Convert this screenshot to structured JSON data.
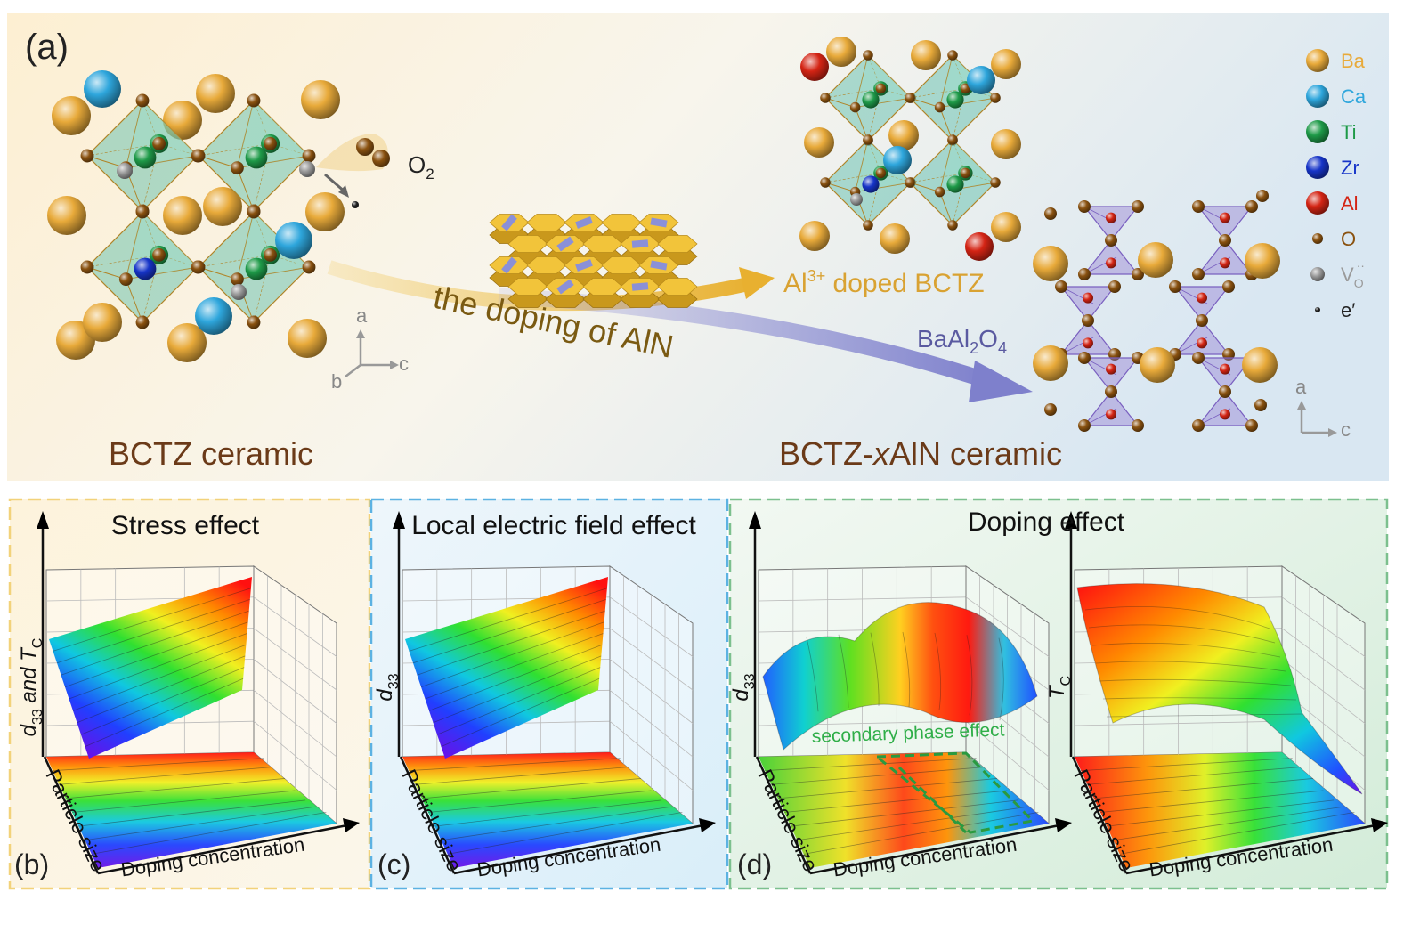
{
  "panel_a": {
    "label": "(a)",
    "o2": [
      "O",
      "2"
    ],
    "arrow_text": "the doping of AlN",
    "doped": [
      "Al",
      "3+",
      " doped BCTZ"
    ],
    "secondary": [
      "BaAl",
      "2",
      "O",
      "4"
    ],
    "left_caption": "BCTZ ceramic",
    "right_caption": [
      "BCTZ-",
      "x",
      "AlN ceramic"
    ],
    "axes_left": [
      "a",
      "b",
      "c"
    ],
    "axes_right": [
      "a",
      "c"
    ],
    "legend": [
      {
        "label": "Ba",
        "color": "#e8aa3a"
      },
      {
        "label": "Ca",
        "color": "#2ea6dc"
      },
      {
        "label": "Ti",
        "color": "#1e9a48"
      },
      {
        "label": "Zr",
        "color": "#1634c8"
      },
      {
        "label": "Al",
        "color": "#d42414"
      },
      {
        "label": "O",
        "color": "#8a5210"
      },
      {
        "label": "V",
        "sub": "O",
        "sup": "··",
        "color": "#9a9a9a"
      },
      {
        "label": "e′",
        "color": "#222222"
      }
    ]
  },
  "panels": [
    {
      "label": "(b)",
      "title": "Stress effect",
      "plots": [
        {
          "z_label": [
            "d",
            "33",
            " and T",
            "C"
          ],
          "y_label": "Particle size",
          "x_label": "Doping concentration"
        }
      ]
    },
    {
      "label": "(c)",
      "title": "Local electric field effect",
      "plots": [
        {
          "z_label": [
            "d",
            "33"
          ],
          "y_label": "Particle size",
          "x_label": "Doping concentration"
        }
      ]
    },
    {
      "label": "(d)",
      "title": "Doping effect",
      "annotation": "secondary phase effect",
      "plots": [
        {
          "z_label": [
            "d",
            "33"
          ],
          "y_label": "Particle size",
          "x_label": "Doping concentration"
        },
        {
          "z_label": [
            "T",
            "C"
          ],
          "y_label": "Particle size",
          "x_label": "Doping concentration"
        }
      ]
    }
  ]
}
